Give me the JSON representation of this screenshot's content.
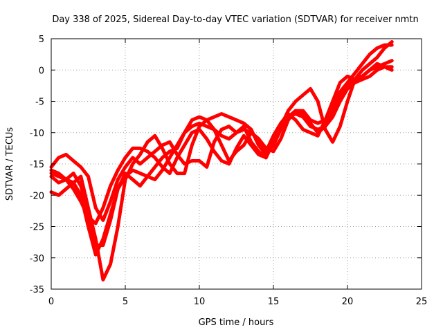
{
  "chart_data": {
    "type": "line",
    "title": "Day 338 of 2025, Sidereal Day-to-day VTEC variation (SDTVAR) for receiver nmtn",
    "xlabel": "GPS time / hours",
    "ylabel": "SDTVAR / TECUs",
    "xlim": [
      0,
      25
    ],
    "ylim": [
      -35,
      5
    ],
    "xticks": [
      "0",
      "5",
      "10",
      "15",
      "20",
      "25"
    ],
    "yticks": [
      "5",
      "0",
      "-5",
      "-10",
      "-15",
      "-20",
      "-25",
      "-30",
      "-35"
    ],
    "grid": true,
    "series_color": "#ff0000",
    "series": [
      {
        "x": [
          0,
          0.5,
          1.0,
          1.5,
          2.0,
          2.5,
          3.0,
          3.5,
          4.0,
          4.5,
          5.0,
          5.5,
          6.0,
          6.5,
          7.0,
          7.5,
          8.0,
          8.5,
          9.0,
          9.5,
          10.0,
          10.5,
          11.0,
          11.5,
          12.0,
          12.5,
          13.0,
          13.5,
          14.0,
          14.5,
          15.0,
          15.5,
          16.0,
          16.5,
          17.0,
          17.5,
          18.0,
          18.5,
          19.0,
          19.5,
          20.0,
          20.5,
          21.0,
          21.5,
          22.0,
          22.5,
          23.0
        ],
        "y": [
          -15.5,
          -14.0,
          -13.5,
          -14.5,
          -15.5,
          -17.0,
          -22.0,
          -24.0,
          -21.0,
          -17.5,
          -15.5,
          -14.0,
          -15.0,
          -14.0,
          -13.0,
          -12.0,
          -11.5,
          -13.5,
          -15.0,
          -14.5,
          -14.5,
          -15.5,
          -11.5,
          -9.5,
          -9.0,
          -10.0,
          -9.5,
          -10.0,
          -11.0,
          -12.5,
          -13.0,
          -11.0,
          -8.0,
          -6.5,
          -7.0,
          -8.5,
          -10.0,
          -9.0,
          -7.0,
          -4.0,
          -2.5,
          -1.5,
          -1.0,
          0.0,
          1.0,
          0.5,
          0.0
        ]
      },
      {
        "x": [
          0,
          0.5,
          1.0,
          1.5,
          2.0,
          2.5,
          3.0,
          3.5,
          4.0,
          4.5,
          5.0,
          5.5,
          6.0,
          6.5,
          7.0,
          7.5,
          8.0,
          8.5,
          9.0,
          9.5,
          10.0,
          10.5,
          11.0,
          11.5,
          12.0,
          12.5,
          13.0,
          13.5,
          14.0,
          14.5,
          15.0,
          15.5,
          16.0,
          16.5,
          17.0,
          17.5,
          18.0,
          18.5,
          19.0,
          19.5,
          20.0,
          20.5,
          21.0,
          21.5,
          22.0,
          22.5,
          23.0
        ],
        "y": [
          -16.5,
          -17.0,
          -17.5,
          -18.0,
          -20.0,
          -25.0,
          -29.5,
          -27.0,
          -23.0,
          -19.0,
          -17.0,
          -16.0,
          -16.5,
          -17.0,
          -17.5,
          -16.0,
          -14.0,
          -12.0,
          -10.0,
          -9.0,
          -8.5,
          -9.0,
          -9.5,
          -10.5,
          -11.0,
          -10.0,
          -9.0,
          -11.5,
          -13.0,
          -14.0,
          -11.0,
          -9.0,
          -6.5,
          -5.0,
          -4.0,
          -3.0,
          -5.0,
          -9.5,
          -11.5,
          -9.0,
          -5.0,
          -1.5,
          0.0,
          1.0,
          2.0,
          3.5,
          4.5
        ]
      },
      {
        "x": [
          0,
          0.5,
          1.0,
          1.5,
          2.0,
          2.5,
          3.0,
          3.5,
          4.0,
          4.5,
          5.0,
          5.5,
          6.0,
          6.5,
          7.0,
          7.5,
          8.0,
          8.5,
          9.0,
          9.5,
          10.0,
          10.5,
          11.0,
          11.5,
          12.0,
          12.5,
          13.0,
          13.5,
          14.0,
          14.5,
          15.0,
          15.5,
          16.0,
          16.5,
          17.0,
          17.5,
          18.0,
          18.5,
          19.0,
          19.5,
          20.0,
          20.5,
          21.0,
          21.5,
          22.0,
          22.5,
          23.0
        ],
        "y": [
          -17.0,
          -18.0,
          -17.5,
          -16.5,
          -18.5,
          -23.0,
          -28.0,
          -28.0,
          -24.0,
          -19.0,
          -16.5,
          -17.5,
          -18.5,
          -17.0,
          -15.5,
          -14.0,
          -13.0,
          -12.5,
          -10.0,
          -8.0,
          -7.5,
          -8.0,
          -7.5,
          -7.0,
          -7.5,
          -8.0,
          -8.5,
          -9.5,
          -12.0,
          -13.5,
          -12.0,
          -9.5,
          -7.5,
          -6.5,
          -6.5,
          -8.0,
          -8.5,
          -8.0,
          -6.0,
          -3.5,
          -2.0,
          -0.5,
          1.0,
          2.5,
          3.5,
          4.0,
          4.0
        ]
      },
      {
        "x": [
          0,
          0.5,
          1.0,
          1.5,
          2.0,
          2.5,
          3.0,
          3.5,
          4.0,
          4.5,
          5.0,
          5.5,
          6.0,
          6.5,
          7.0,
          7.5,
          8.0,
          8.5,
          9.0,
          9.5,
          10.0,
          10.5,
          11.0,
          11.5,
          12.0,
          12.5,
          13.0,
          13.5,
          14.0,
          14.5,
          15.0,
          15.5,
          16.0,
          16.5,
          17.0,
          17.5,
          18.0,
          18.5,
          19.0,
          19.5,
          20.0,
          20.5,
          21.0,
          21.5,
          22.0,
          22.5,
          23.0
        ],
        "y": [
          -19.5,
          -20.0,
          -19.0,
          -18.0,
          -17.0,
          -22.0,
          -27.0,
          -33.5,
          -31.0,
          -25.0,
          -17.5,
          -15.0,
          -13.5,
          -11.5,
          -10.5,
          -12.5,
          -15.0,
          -16.5,
          -16.5,
          -12.0,
          -9.0,
          -8.0,
          -9.5,
          -12.0,
          -14.5,
          -13.0,
          -12.0,
          -10.0,
          -11.0,
          -13.0,
          -10.5,
          -8.5,
          -7.0,
          -8.0,
          -9.5,
          -10.0,
          -10.5,
          -8.0,
          -5.0,
          -2.0,
          -1.0,
          -1.5,
          -1.0,
          0.0,
          0.5,
          1.0,
          1.5
        ]
      },
      {
        "x": [
          0,
          0.5,
          1.0,
          1.5,
          2.0,
          2.5,
          3.0,
          3.5,
          4.0,
          4.5,
          5.0,
          5.5,
          6.0,
          6.5,
          7.0,
          7.5,
          8.0,
          8.5,
          9.0,
          9.5,
          10.0,
          10.5,
          11.0,
          11.5,
          12.0,
          12.5,
          13.0,
          13.5,
          14.0,
          14.5,
          15.0,
          15.5,
          16.0,
          16.5,
          17.0,
          17.5,
          18.0,
          18.5,
          19.0,
          19.5,
          20.0,
          20.5,
          21.0,
          21.5,
          22.0,
          22.5,
          23.0
        ],
        "y": [
          -16.0,
          -16.5,
          -17.5,
          -19.0,
          -21.0,
          -23.5,
          -24.5,
          -22.0,
          -18.5,
          -16.0,
          -14.0,
          -12.5,
          -12.5,
          -13.0,
          -14.0,
          -15.5,
          -16.5,
          -14.0,
          -12.0,
          -10.0,
          -9.5,
          -11.0,
          -13.0,
          -14.5,
          -15.0,
          -12.5,
          -10.5,
          -12.0,
          -13.5,
          -14.0,
          -11.5,
          -9.0,
          -7.5,
          -7.0,
          -7.5,
          -9.0,
          -9.5,
          -9.0,
          -7.5,
          -5.0,
          -3.0,
          -2.0,
          -1.5,
          -1.0,
          0.0,
          0.5,
          0.5
        ]
      }
    ]
  }
}
